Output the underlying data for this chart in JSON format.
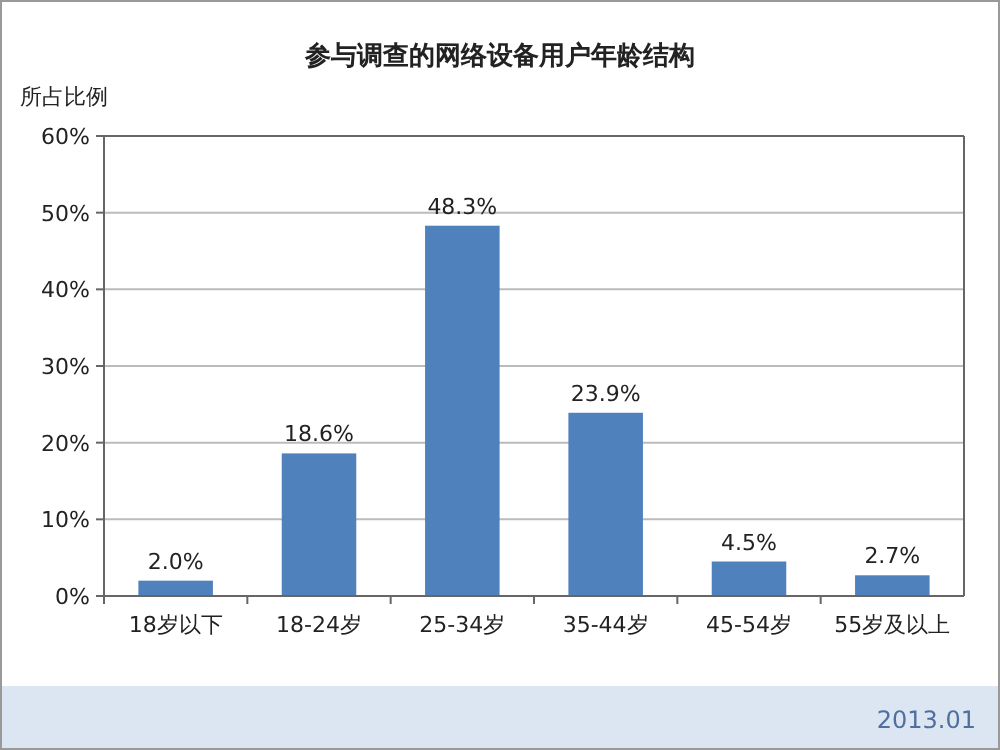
{
  "chart_data": {
    "type": "bar",
    "title": "参与调查的网络设备用户年龄结构",
    "ylabel": "所占比例",
    "categories": [
      "18岁以下",
      "18-24岁",
      "25-34岁",
      "35-44岁",
      "45-54岁",
      "55岁及以上"
    ],
    "values": [
      2.0,
      18.6,
      48.3,
      23.9,
      4.5,
      2.7
    ],
    "value_labels": [
      "2.0%",
      "18.6%",
      "48.3%",
      "23.9%",
      "4.5%",
      "2.7%"
    ],
    "color": "#4f81bd",
    "ylim": [
      0,
      60
    ],
    "yticks": [
      {
        "value": 0,
        "label": "0%"
      },
      {
        "value": 10,
        "label": "10%"
      },
      {
        "value": 20,
        "label": "20%"
      },
      {
        "value": 30,
        "label": "30%"
      },
      {
        "value": 40,
        "label": "40%"
      },
      {
        "value": 50,
        "label": "50%"
      },
      {
        "value": 60,
        "label": "60%"
      }
    ],
    "grid": "y",
    "annotations": [
      "2013.01"
    ]
  }
}
